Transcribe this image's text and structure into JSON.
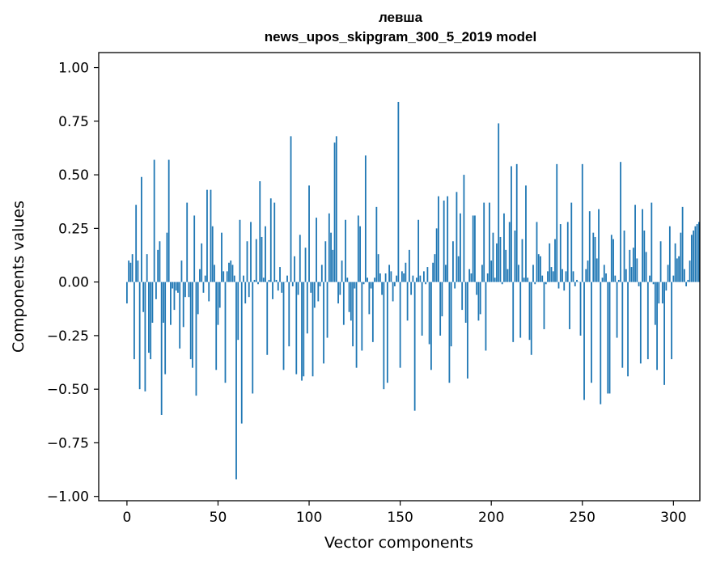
{
  "chart_data": {
    "type": "bar",
    "title": [
      "левша",
      "news_upos_skipgram_300_5_2019 model"
    ],
    "xlabel": "Vector components",
    "ylabel": "Components values",
    "xlim": [
      -15.5,
      314.5
    ],
    "ylim": [
      -1.02,
      1.07
    ],
    "xticks": [
      0,
      50,
      100,
      150,
      200,
      250,
      300
    ],
    "xtick_labels": [
      "0",
      "50",
      "100",
      "150",
      "200",
      "250",
      "300"
    ],
    "yticks": [
      1.0,
      0.75,
      0.5,
      0.25,
      0.0,
      -0.25,
      -0.5,
      -0.75,
      -1.0
    ],
    "ytick_labels": [
      "1.00",
      "0.75",
      "0.50",
      "0.25",
      "0.00",
      "−0.25",
      "−0.50",
      "−0.75",
      "−1.00"
    ],
    "bar_color": "#1f77b4",
    "grid": false,
    "legend": null,
    "values": [
      -0.1,
      0.1,
      0.09,
      0.13,
      -0.36,
      0.36,
      0.1,
      -0.5,
      0.49,
      -0.14,
      -0.51,
      0.13,
      -0.33,
      -0.36,
      -0.19,
      0.57,
      -0.08,
      0.15,
      0.19,
      -0.62,
      -0.19,
      -0.43,
      0.23,
      0.57,
      -0.2,
      -0.03,
      -0.13,
      -0.04,
      -0.05,
      -0.31,
      0.1,
      -0.21,
      -0.07,
      0.37,
      -0.07,
      -0.36,
      -0.4,
      0.31,
      -0.53,
      -0.15,
      0.06,
      0.18,
      -0.05,
      0.03,
      0.43,
      -0.09,
      0.43,
      0.26,
      0.08,
      -0.41,
      -0.2,
      -0.12,
      0.23,
      0.05,
      -0.47,
      0.05,
      0.09,
      0.1,
      0.08,
      0.03,
      -0.92,
      -0.27,
      0.29,
      -0.66,
      0.03,
      -0.1,
      0.19,
      -0.07,
      0.28,
      -0.52,
      0.01,
      0.2,
      -0.01,
      0.47,
      0.21,
      0.02,
      0.26,
      -0.34,
      0.01,
      0.39,
      -0.08,
      0.37,
      0.01,
      -0.04,
      0.07,
      -0.05,
      -0.41,
      0.0,
      0.03,
      -0.3,
      0.68,
      -0.02,
      0.12,
      -0.43,
      -0.06,
      0.22,
      -0.46,
      -0.44,
      0.16,
      -0.24,
      0.45,
      -0.05,
      -0.44,
      -0.12,
      0.3,
      -0.09,
      -0.02,
      0.08,
      -0.38,
      0.19,
      -0.26,
      0.32,
      0.23,
      0.15,
      0.65,
      0.68,
      -0.1,
      -0.06,
      0.1,
      -0.2,
      0.29,
      0.02,
      -0.14,
      -0.18,
      -0.3,
      -0.03,
      -0.4,
      0.31,
      0.26,
      -0.32,
      -0.01,
      0.59,
      0.02,
      -0.15,
      -0.03,
      -0.28,
      0.02,
      0.35,
      0.13,
      0.04,
      -0.06,
      -0.5,
      0.04,
      -0.47,
      0.08,
      0.05,
      -0.09,
      -0.02,
      0.03,
      0.84,
      -0.4,
      0.05,
      0.04,
      0.09,
      -0.18,
      0.15,
      -0.06,
      0.03,
      -0.6,
      0.02,
      0.29,
      0.03,
      -0.25,
      0.05,
      -0.01,
      0.07,
      -0.29,
      -0.41,
      0.09,
      0.13,
      0.25,
      0.4,
      -0.25,
      -0.16,
      0.38,
      0.08,
      0.4,
      -0.47,
      -0.3,
      0.19,
      -0.03,
      0.42,
      0.12,
      0.32,
      -0.13,
      0.5,
      -0.19,
      -0.45,
      0.06,
      0.04,
      0.31,
      0.31,
      -0.06,
      -0.18,
      -0.15,
      0.08,
      0.37,
      -0.32,
      0.04,
      0.37,
      0.1,
      0.23,
      0.02,
      0.18,
      0.74,
      0.21,
      -0.01,
      0.32,
      0.15,
      0.06,
      0.28,
      0.54,
      -0.28,
      0.24,
      0.55,
      0.08,
      -0.26,
      0.2,
      0.02,
      0.45,
      0.02,
      -0.27,
      -0.34,
      0.08,
      -0.01,
      0.28,
      0.13,
      0.12,
      0.03,
      -0.22,
      -0.01,
      0.05,
      0.18,
      0.07,
      0.05,
      0.2,
      0.55,
      -0.03,
      0.27,
      0.06,
      -0.04,
      0.05,
      0.28,
      -0.22,
      0.37,
      0.05,
      -0.02,
      0.01,
      0.0,
      -0.25,
      0.55,
      -0.55,
      0.06,
      0.1,
      0.33,
      -0.47,
      0.23,
      0.21,
      0.11,
      0.34,
      -0.57,
      0.02,
      0.08,
      0.04,
      -0.52,
      -0.52,
      0.22,
      0.2,
      0.03,
      -0.26,
      0.01,
      0.56,
      -0.4,
      0.24,
      0.06,
      -0.44,
      0.15,
      0.07,
      0.16,
      0.36,
      0.11,
      -0.02,
      -0.38,
      0.34,
      0.24,
      0.14,
      -0.36,
      0.03,
      0.37,
      -0.01,
      -0.2,
      -0.41,
      -0.1,
      0.19,
      -0.1,
      -0.48,
      -0.04,
      0.08,
      0.26,
      -0.36,
      0.03,
      0.18,
      0.11,
      0.12,
      0.23,
      0.35,
      0.06,
      -0.02,
      0.01,
      0.1,
      0.22,
      0.24,
      0.26,
      0.27,
      0.28
    ]
  }
}
